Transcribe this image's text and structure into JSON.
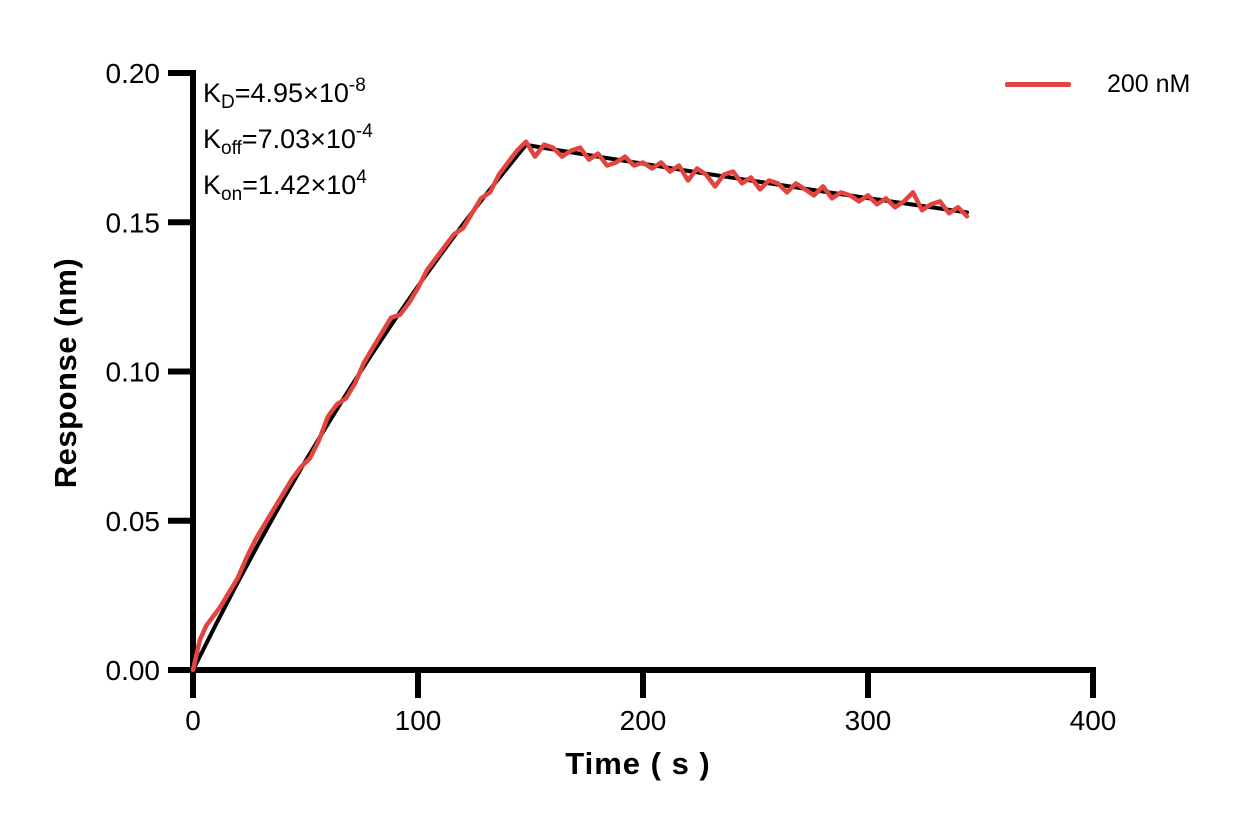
{
  "page": {
    "background": "#ffffff",
    "axis_color": "#000000"
  },
  "legend": {
    "position": "top-right",
    "entries": [
      {
        "label": "200 nM",
        "color": "#E2453F"
      }
    ]
  },
  "annotations": [
    {
      "name": "KD",
      "base": "K",
      "sub": "D",
      "mid": "=4.95×10",
      "sup": "-8"
    },
    {
      "name": "Koff",
      "base": "K",
      "sub": "off",
      "mid": "=7.03×10",
      "sup": "-4"
    },
    {
      "name": "Kon",
      "base": "K",
      "sub": "on",
      "mid": "=1.42×10",
      "sup": "4"
    }
  ],
  "chart_data": {
    "type": "line",
    "title": "",
    "xlabel": "Time ( s )",
    "ylabel": "Response (nm)",
    "xlim": [
      0,
      400
    ],
    "ylim": [
      0,
      0.2
    ],
    "grid": false,
    "x_ticks": [
      {
        "v": 0,
        "label": "0"
      },
      {
        "v": 100,
        "label": "100"
      },
      {
        "v": 200,
        "label": "200"
      },
      {
        "v": 300,
        "label": "300"
      },
      {
        "v": 400,
        "label": "400"
      }
    ],
    "y_ticks": [
      {
        "v": 0.0,
        "label": "0.00"
      },
      {
        "v": 0.05,
        "label": "0.05"
      },
      {
        "v": 0.1,
        "label": "0.10"
      },
      {
        "v": 0.15,
        "label": "0.15"
      },
      {
        "v": 0.2,
        "label": "0.20"
      }
    ],
    "kinetic_constants": {
      "KD": "4.95e-8",
      "Koff": "7.03e-4",
      "Kon": "1.42e4"
    },
    "series": [
      {
        "name": "fit-line",
        "color": "#000000",
        "width": 4,
        "points": [
          [
            0,
            0.0
          ],
          [
            10,
            0.015
          ],
          [
            20,
            0.0295
          ],
          [
            30,
            0.0435
          ],
          [
            40,
            0.057
          ],
          [
            50,
            0.07
          ],
          [
            60,
            0.0825
          ],
          [
            70,
            0.0947
          ],
          [
            80,
            0.1064
          ],
          [
            90,
            0.1177
          ],
          [
            100,
            0.1286
          ],
          [
            110,
            0.1391
          ],
          [
            120,
            0.1493
          ],
          [
            130,
            0.1591
          ],
          [
            140,
            0.1685
          ],
          [
            148,
            0.1759
          ],
          [
            160,
            0.1744
          ],
          [
            180,
            0.172
          ],
          [
            200,
            0.1696
          ],
          [
            220,
            0.1672
          ],
          [
            240,
            0.1649
          ],
          [
            260,
            0.1626
          ],
          [
            280,
            0.1603
          ],
          [
            300,
            0.1581
          ],
          [
            320,
            0.1559
          ],
          [
            344,
            0.1533
          ]
        ]
      },
      {
        "name": "observed-200nM",
        "color": "#E2453F",
        "width": 4.5,
        "points": [
          [
            0,
            0.0
          ],
          [
            3,
            0.01
          ],
          [
            6,
            0.015
          ],
          [
            9,
            0.018
          ],
          [
            12,
            0.021
          ],
          [
            16,
            0.026
          ],
          [
            20,
            0.031
          ],
          [
            24,
            0.038
          ],
          [
            28,
            0.044
          ],
          [
            32,
            0.049
          ],
          [
            36,
            0.054
          ],
          [
            40,
            0.059
          ],
          [
            44,
            0.064
          ],
          [
            48,
            0.068
          ],
          [
            52,
            0.071
          ],
          [
            56,
            0.077
          ],
          [
            60,
            0.085
          ],
          [
            64,
            0.089
          ],
          [
            68,
            0.091
          ],
          [
            72,
            0.096
          ],
          [
            76,
            0.103
          ],
          [
            80,
            0.108
          ],
          [
            84,
            0.113
          ],
          [
            88,
            0.118
          ],
          [
            92,
            0.119
          ],
          [
            96,
            0.123
          ],
          [
            100,
            0.128
          ],
          [
            104,
            0.134
          ],
          [
            108,
            0.138
          ],
          [
            112,
            0.142
          ],
          [
            116,
            0.146
          ],
          [
            120,
            0.148
          ],
          [
            124,
            0.153
          ],
          [
            128,
            0.158
          ],
          [
            132,
            0.16
          ],
          [
            136,
            0.166
          ],
          [
            140,
            0.17
          ],
          [
            144,
            0.174
          ],
          [
            148,
            0.177
          ],
          [
            152,
            0.172
          ],
          [
            156,
            0.176
          ],
          [
            160,
            0.175
          ],
          [
            164,
            0.172
          ],
          [
            168,
            0.174
          ],
          [
            172,
            0.175
          ],
          [
            176,
            0.171
          ],
          [
            180,
            0.173
          ],
          [
            184,
            0.169
          ],
          [
            188,
            0.17
          ],
          [
            192,
            0.172
          ],
          [
            196,
            0.169
          ],
          [
            200,
            0.17
          ],
          [
            204,
            0.168
          ],
          [
            208,
            0.17
          ],
          [
            212,
            0.167
          ],
          [
            216,
            0.169
          ],
          [
            220,
            0.164
          ],
          [
            224,
            0.168
          ],
          [
            228,
            0.166
          ],
          [
            232,
            0.162
          ],
          [
            236,
            0.166
          ],
          [
            240,
            0.167
          ],
          [
            244,
            0.163
          ],
          [
            248,
            0.165
          ],
          [
            252,
            0.161
          ],
          [
            256,
            0.164
          ],
          [
            260,
            0.163
          ],
          [
            264,
            0.16
          ],
          [
            268,
            0.163
          ],
          [
            272,
            0.161
          ],
          [
            276,
            0.159
          ],
          [
            280,
            0.162
          ],
          [
            284,
            0.158
          ],
          [
            288,
            0.16
          ],
          [
            292,
            0.159
          ],
          [
            296,
            0.157
          ],
          [
            300,
            0.159
          ],
          [
            304,
            0.156
          ],
          [
            308,
            0.158
          ],
          [
            312,
            0.155
          ],
          [
            316,
            0.157
          ],
          [
            320,
            0.16
          ],
          [
            324,
            0.154
          ],
          [
            328,
            0.156
          ],
          [
            332,
            0.157
          ],
          [
            336,
            0.153
          ],
          [
            340,
            0.155
          ],
          [
            344,
            0.152
          ]
        ]
      }
    ]
  }
}
